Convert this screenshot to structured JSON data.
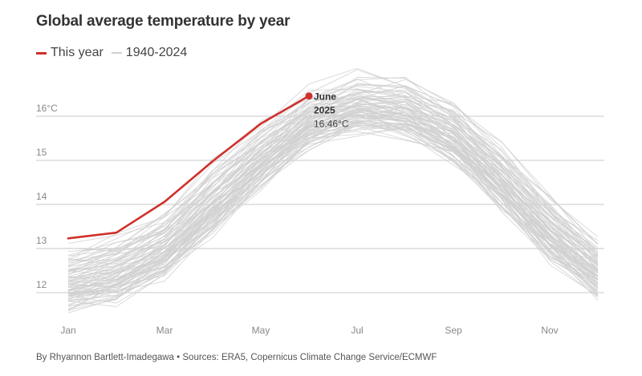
{
  "title": "Global average temperature by year",
  "legend": [
    {
      "label": "This year",
      "color": "#d0302b"
    },
    {
      "label": "1940-2024",
      "color": "#d0d0d0"
    }
  ],
  "footer": "By Rhyannon Bartlett-Imadegawa • Sources: ERA5, Copernicus Climate Change Service/ECMWF",
  "chart_data": {
    "type": "line",
    "title": "Global average temperature by year",
    "xlabel": "",
    "ylabel": "",
    "y_unit": "°C",
    "ylim": [
      11.5,
      17.0
    ],
    "xlim": [
      0.85,
      12.25
    ],
    "grid": true,
    "y_ticks": [
      12,
      13,
      14,
      15,
      16
    ],
    "y_tick_labels": [
      "12",
      "13",
      "14",
      "15",
      "16°C"
    ],
    "x_tick_positions": [
      1,
      3,
      5,
      7,
      9,
      11
    ],
    "x_tick_labels": [
      "Jan",
      "Mar",
      "May",
      "Jul",
      "Sep",
      "Nov"
    ],
    "months": [
      1,
      2,
      3,
      4,
      5,
      6,
      7,
      8,
      9,
      10,
      11,
      12
    ],
    "series": [
      {
        "name": "This year",
        "year": 2025,
        "color": "#d0302b",
        "x": [
          1,
          2,
          3,
          4,
          5,
          6
        ],
        "values": [
          13.23,
          13.36,
          14.06,
          14.98,
          15.83,
          16.46
        ]
      },
      {
        "name": "1940-2024",
        "color": "#d0d0d0",
        "range": "1940-2024",
        "start_profile": [
          11.8,
          12.0,
          12.55,
          13.55,
          14.6,
          15.5,
          15.85,
          15.75,
          15.15,
          14.1,
          12.95,
          12.1
        ],
        "end_profile": [
          12.85,
          13.15,
          13.7,
          14.75,
          15.65,
          16.4,
          16.75,
          16.7,
          16.2,
          15.2,
          14.05,
          13.05
        ]
      }
    ],
    "annotation": {
      "month": "June",
      "year": "2025",
      "value": "16.46°C",
      "x": 6,
      "y": 16.46
    }
  }
}
